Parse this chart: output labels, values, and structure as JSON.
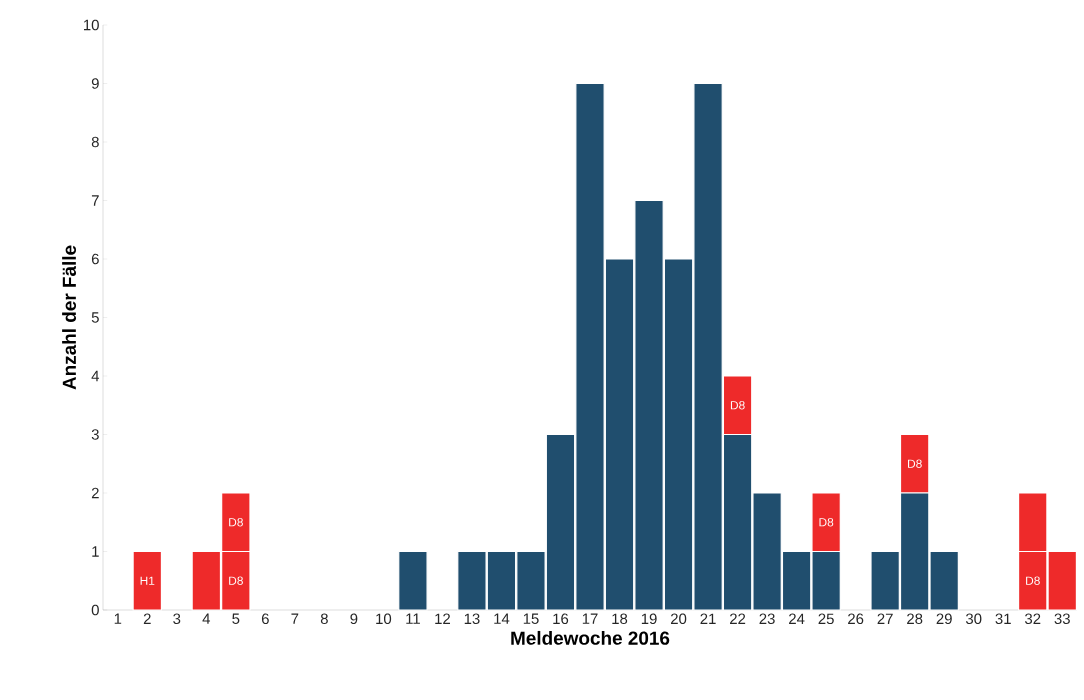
{
  "chart_data": {
    "type": "bar",
    "stacked": true,
    "xlabel": "Meldewoche 2016",
    "ylabel": "Anzahl der Fälle",
    "categories": [
      "1",
      "2",
      "3",
      "4",
      "5",
      "6",
      "7",
      "8",
      "9",
      "10",
      "11",
      "12",
      "13",
      "14",
      "15",
      "16",
      "17",
      "18",
      "19",
      "20",
      "21",
      "22",
      "23",
      "24",
      "25",
      "26",
      "27",
      "28",
      "29",
      "30",
      "31",
      "32",
      "33"
    ],
    "series": [
      {
        "color": "#204e6e",
        "values": [
          0,
          0,
          0,
          0,
          0,
          0,
          0,
          0,
          0,
          0,
          1,
          0,
          1,
          1,
          1,
          3,
          9,
          6,
          7,
          6,
          9,
          3,
          2,
          1,
          1,
          0,
          1,
          2,
          1,
          0,
          0,
          0,
          0
        ]
      },
      {
        "color": "#ee2a2a",
        "values": [
          0,
          1,
          0,
          1,
          1,
          0,
          0,
          0,
          0,
          0,
          0,
          0,
          0,
          0,
          0,
          0,
          0,
          0,
          0,
          0,
          0,
          1,
          0,
          0,
          1,
          0,
          0,
          1,
          0,
          0,
          0,
          1,
          1
        ],
        "value_labels": [
          null,
          "H1",
          null,
          null,
          "D8",
          null,
          null,
          null,
          null,
          null,
          null,
          null,
          null,
          null,
          null,
          null,
          null,
          null,
          null,
          null,
          null,
          "D8",
          null,
          null,
          "D8",
          null,
          null,
          "D8",
          null,
          null,
          null,
          "D8",
          null
        ]
      },
      {
        "color": "#ee2a2a",
        "values": [
          0,
          0,
          0,
          0,
          1,
          0,
          0,
          0,
          0,
          0,
          0,
          0,
          0,
          0,
          0,
          0,
          0,
          0,
          0,
          0,
          0,
          0,
          0,
          0,
          0,
          0,
          0,
          0,
          0,
          0,
          0,
          1,
          0
        ],
        "value_labels": [
          null,
          null,
          null,
          null,
          "D8",
          null,
          null,
          null,
          null,
          null,
          null,
          null,
          null,
          null,
          null,
          null,
          null,
          null,
          null,
          null,
          null,
          null,
          null,
          null,
          null,
          null,
          null,
          null,
          null,
          null,
          null,
          null,
          null
        ]
      }
    ],
    "ylim": [
      0,
      10
    ],
    "yticks": [
      0,
      1,
      2,
      3,
      4,
      5,
      6,
      7,
      8,
      9,
      10
    ],
    "grid": false
  }
}
